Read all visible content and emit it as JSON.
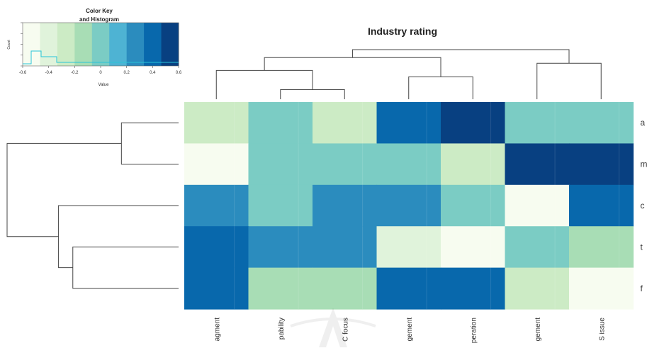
{
  "chart_data": {
    "type": "heatmap",
    "title": "Industry rating",
    "color_key": {
      "title_line1": "Color Key",
      "title_line2": "and Histogram",
      "axis_label": "Value",
      "y_label": "Count",
      "ticks": [
        "-0.6",
        "-0.4",
        "-0.2",
        "0",
        "0.2",
        "0.4",
        "0.6"
      ],
      "range": [
        -0.6,
        0.6
      ],
      "palette": [
        "#f7fcf0",
        "#e0f3db",
        "#ccebc5",
        "#a8ddb5",
        "#7bccc4",
        "#4eb3d3",
        "#2b8cbe",
        "#0868ac",
        "#084081"
      ]
    },
    "columns": [
      "agment",
      "pability",
      "C focus",
      "gement",
      "peration",
      "gement",
      "S issue"
    ],
    "rows": [
      "a",
      "m",
      "c",
      "t",
      "f"
    ],
    "values": [
      [
        -0.22,
        0.05,
        -0.22,
        0.45,
        0.48,
        0.05,
        -0.05
      ],
      [
        -0.55,
        0.05,
        0.05,
        0.05,
        -0.22,
        0.48,
        0.65
      ],
      [
        0.25,
        -0.05,
        0.25,
        0.25,
        0.05,
        -0.5,
        0.45
      ],
      [
        0.45,
        0.3,
        0.3,
        -0.45,
        -0.48,
        0.05,
        -0.2
      ],
      [
        0.45,
        -0.2,
        -0.2,
        0.45,
        0.45,
        -0.3,
        -0.55
      ]
    ],
    "col_dendrogram": {
      "merges": [
        [
          2,
          3,
          0.12
        ],
        [
          4,
          5,
          0.28
        ],
        [
          1,
          8,
          0.36
        ],
        [
          6,
          7,
          0.45
        ],
        [
          9,
          10,
          0.52
        ],
        [
          11,
          12,
          0.62
        ]
      ]
    },
    "row_dendrogram": {
      "merges": [
        [
          1,
          2,
          0.2
        ],
        [
          4,
          5,
          0.37
        ],
        [
          3,
          7,
          0.42
        ],
        [
          6,
          8,
          0.6
        ]
      ]
    },
    "grid": false
  }
}
